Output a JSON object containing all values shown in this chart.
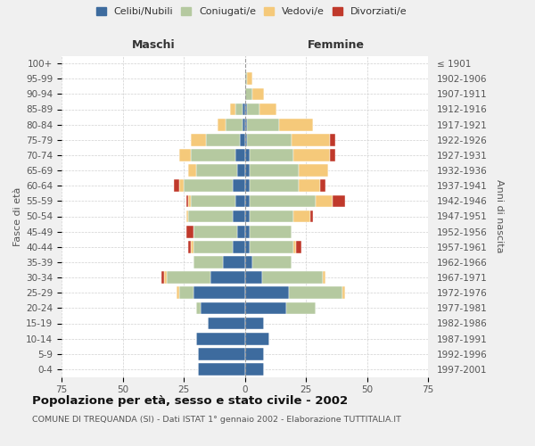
{
  "age_groups": [
    "0-4",
    "5-9",
    "10-14",
    "15-19",
    "20-24",
    "25-29",
    "30-34",
    "35-39",
    "40-44",
    "45-49",
    "50-54",
    "55-59",
    "60-64",
    "65-69",
    "70-74",
    "75-79",
    "80-84",
    "85-89",
    "90-94",
    "95-99",
    "100+"
  ],
  "birth_years": [
    "1997-2001",
    "1992-1996",
    "1987-1991",
    "1982-1986",
    "1977-1981",
    "1972-1976",
    "1967-1971",
    "1962-1966",
    "1957-1961",
    "1952-1956",
    "1947-1951",
    "1942-1946",
    "1937-1941",
    "1932-1936",
    "1927-1931",
    "1922-1926",
    "1917-1921",
    "1912-1916",
    "1907-1911",
    "1902-1906",
    "≤ 1901"
  ],
  "colors": {
    "celibe": "#3D6B9E",
    "coniugato": "#B5C9A0",
    "vedovo": "#F5C97A",
    "divorziato": "#C0392B"
  },
  "maschi": {
    "celibe": [
      19,
      19,
      20,
      15,
      18,
      21,
      14,
      9,
      5,
      3,
      5,
      4,
      5,
      3,
      4,
      2,
      1,
      1,
      0,
      0,
      0
    ],
    "coniugato": [
      0,
      0,
      0,
      0,
      2,
      6,
      18,
      12,
      16,
      18,
      18,
      18,
      20,
      17,
      18,
      14,
      7,
      3,
      0,
      0,
      0
    ],
    "vedovo": [
      0,
      0,
      0,
      0,
      0,
      1,
      1,
      0,
      1,
      0,
      1,
      1,
      2,
      3,
      5,
      6,
      3,
      2,
      0,
      0,
      0
    ],
    "divorziato": [
      0,
      0,
      0,
      0,
      0,
      0,
      1,
      0,
      1,
      3,
      0,
      1,
      2,
      0,
      0,
      0,
      0,
      0,
      0,
      0,
      0
    ]
  },
  "femmine": {
    "celibe": [
      8,
      8,
      10,
      8,
      17,
      18,
      7,
      3,
      2,
      2,
      2,
      2,
      2,
      2,
      2,
      1,
      1,
      1,
      0,
      0,
      0
    ],
    "coniugato": [
      0,
      0,
      0,
      0,
      12,
      22,
      25,
      16,
      18,
      17,
      18,
      27,
      20,
      20,
      18,
      18,
      13,
      5,
      3,
      1,
      0
    ],
    "vedovo": [
      0,
      0,
      0,
      0,
      0,
      1,
      1,
      0,
      1,
      0,
      7,
      7,
      9,
      12,
      15,
      16,
      14,
      7,
      5,
      2,
      0
    ],
    "divorziato": [
      0,
      0,
      0,
      0,
      0,
      0,
      0,
      0,
      2,
      0,
      1,
      5,
      2,
      0,
      2,
      2,
      0,
      0,
      0,
      0,
      0
    ]
  },
  "xlim": 75,
  "title": "Popolazione per età, sesso e stato civile - 2002",
  "subtitle": "COMUNE DI TREQUANDA (SI) - Dati ISTAT 1° gennaio 2002 - Elaborazione TUTTITALIA.IT",
  "ylabel_left": "Fasce di età",
  "ylabel_right": "Anni di nascita",
  "xlabel_left": "Maschi",
  "xlabel_right": "Femmine",
  "legend_labels": [
    "Celibi/Nubili",
    "Coniugati/e",
    "Vedovi/e",
    "Divorziati/e"
  ],
  "background_color": "#f0f0f0",
  "plot_bg": "#ffffff"
}
